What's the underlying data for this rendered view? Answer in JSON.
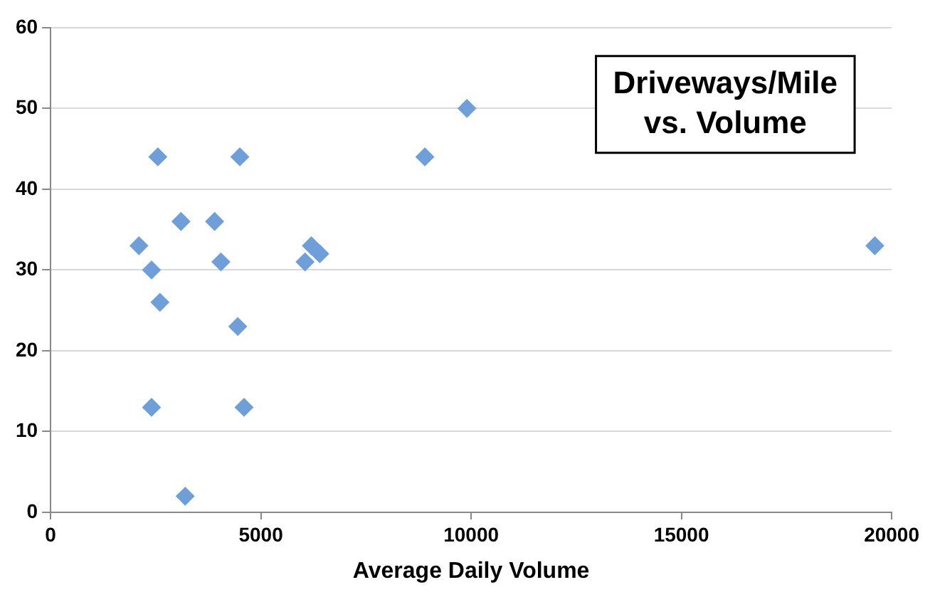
{
  "chart_data": {
    "type": "scatter",
    "title": "Driveways/Mile vs. Volume",
    "xlabel": "Average Daily Volume",
    "x": [
      2100,
      2400,
      2550,
      2600,
      2400,
      3100,
      3200,
      3900,
      4050,
      4450,
      4500,
      4600,
      6050,
      6200,
      6400,
      8900,
      9900,
      19600
    ],
    "series": [
      {
        "color": "#6f9fd8",
        "values": [
          33,
          30,
          44,
          26,
          13,
          36,
          2,
          36,
          31,
          23,
          44,
          13,
          31,
          33,
          32,
          44,
          50,
          33
        ]
      }
    ],
    "xlim": [
      0,
      20000
    ],
    "xticks": [
      0,
      5000,
      10000,
      15000,
      20000
    ],
    "ylim": [
      0,
      60
    ],
    "yticks": [
      0,
      10,
      20,
      30,
      40,
      50,
      60
    ],
    "grid": "y",
    "marker": "diamond",
    "legend": false
  }
}
